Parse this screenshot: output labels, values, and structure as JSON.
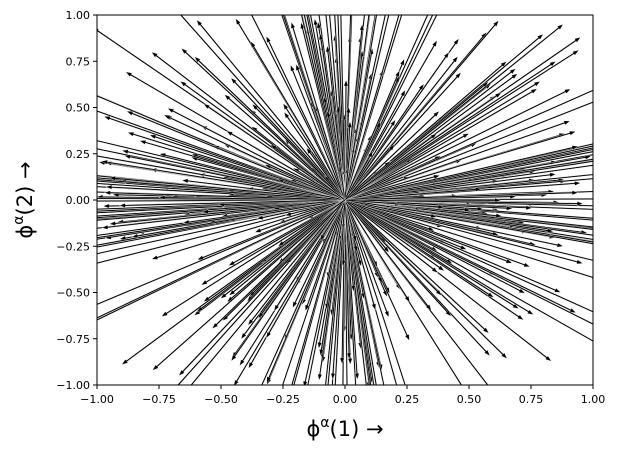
{
  "chart_data": {
    "type": "quiver",
    "title": "",
    "xlabel": {
      "base": "ϕ",
      "superscript": "α",
      "rest": "(1) →"
    },
    "ylabel": {
      "base": "ϕ",
      "superscript": "α",
      "rest": "(2) →"
    },
    "xlim": [
      -1.0,
      1.0
    ],
    "ylim": [
      -1.0,
      1.0
    ],
    "xticks": [
      "−1.00",
      "−0.75",
      "−0.50",
      "−0.25",
      "0.00",
      "0.25",
      "0.50",
      "0.75",
      "1.00"
    ],
    "yticks": [
      "−1.00",
      "−0.75",
      "−0.50",
      "−0.25",
      "0.00",
      "0.25",
      "0.50",
      "0.75",
      "1.00"
    ],
    "xtick_values": [
      -1.0,
      -0.75,
      -0.5,
      -0.25,
      0.0,
      0.25,
      0.5,
      0.75,
      1.0
    ],
    "ytick_values": [
      -1.0,
      -0.75,
      -0.5,
      -0.25,
      0.0,
      0.25,
      0.5,
      0.75,
      1.0
    ],
    "grid": false,
    "legend": "none",
    "arrow_origin": [
      0.0,
      0.0
    ],
    "arrow_color": "#000000",
    "arrow_count_estimate": 500,
    "arrows_sample": [
      {
        "u": 0.95,
        "v": 0.88
      },
      {
        "u": 0.88,
        "v": 0.95
      },
      {
        "u": 0.62,
        "v": 0.97
      },
      {
        "u": 0.85,
        "v": 0.75
      },
      {
        "u": 0.91,
        "v": 0.6
      },
      {
        "u": 0.93,
        "v": 0.37
      },
      {
        "u": 0.94,
        "v": 0.29
      },
      {
        "u": 0.85,
        "v": 0.14
      },
      {
        "u": 0.94,
        "v": 0.04
      },
      {
        "u": 0.96,
        "v": -0.02
      },
      {
        "u": 0.84,
        "v": -0.17
      },
      {
        "u": 0.88,
        "v": -0.25
      },
      {
        "u": 0.87,
        "v": -0.5
      },
      {
        "u": 0.76,
        "v": -0.62
      },
      {
        "u": 0.58,
        "v": -0.72
      },
      {
        "u": 0.26,
        "v": -0.76
      },
      {
        "u": 0.15,
        "v": -0.45
      },
      {
        "u": 0.05,
        "v": -0.97
      },
      {
        "u": -0.05,
        "v": -0.97
      },
      {
        "u": -0.16,
        "v": -0.6
      },
      {
        "u": -0.35,
        "v": -0.64
      },
      {
        "u": -0.57,
        "v": -0.55
      },
      {
        "u": -0.74,
        "v": -0.63
      },
      {
        "u": -0.9,
        "v": -0.89
      },
      {
        "u": -0.67,
        "v": -0.95
      },
      {
        "u": -0.78,
        "v": -0.32
      },
      {
        "u": -0.86,
        "v": -0.2
      },
      {
        "u": -0.95,
        "v": -0.13
      },
      {
        "u": -0.91,
        "v": -0.03
      },
      {
        "u": -0.97,
        "v": 0.04
      },
      {
        "u": -0.95,
        "v": 0.12
      },
      {
        "u": -0.89,
        "v": 0.24
      },
      {
        "u": -0.88,
        "v": 0.48
      },
      {
        "u": -0.73,
        "v": 0.46
      },
      {
        "u": -0.57,
        "v": 0.52
      },
      {
        "u": -0.46,
        "v": 0.66
      },
      {
        "u": -0.66,
        "v": 0.82
      },
      {
        "u": -0.78,
        "v": 0.8
      },
      {
        "u": -0.22,
        "v": 0.73
      },
      {
        "u": -0.1,
        "v": 0.9
      },
      {
        "u": 0.07,
        "v": 0.95
      },
      {
        "u": 0.22,
        "v": 0.7
      },
      {
        "u": 0.38,
        "v": 0.48
      },
      {
        "u": 0.5,
        "v": 0.36
      },
      {
        "u": 0.55,
        "v": 0.06
      },
      {
        "u": 0.4,
        "v": -0.04
      },
      {
        "u": 0.63,
        "v": 0.58
      },
      {
        "u": 0.2,
        "v": 0.3
      },
      {
        "u": -0.3,
        "v": 0.3
      },
      {
        "u": -0.27,
        "v": -0.25
      }
    ]
  }
}
